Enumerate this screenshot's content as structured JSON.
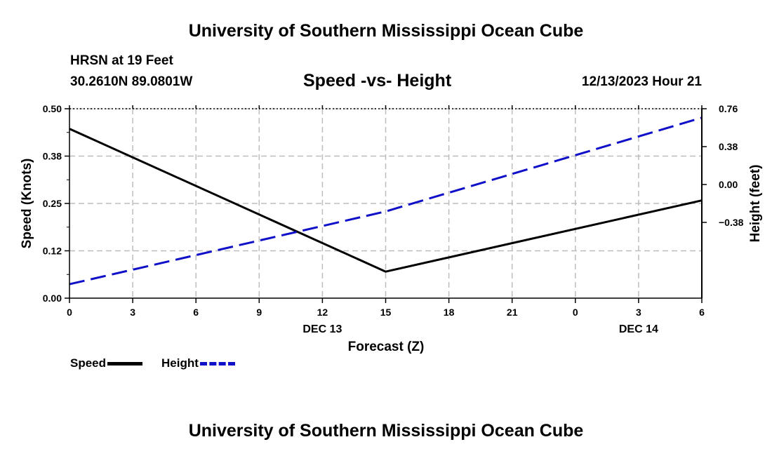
{
  "page": {
    "top_title": "University of Southern Mississippi Ocean Cube",
    "bottom_title": "University of Southern Mississippi Ocean Cube",
    "station": "HRSN at 19 Feet",
    "coords": "30.2610N  89.0801W",
    "datetime": "12/13/2023 Hour 21"
  },
  "colors": {
    "speed": "#000000",
    "height": "#1010c8",
    "grid": "#bdbdbd"
  },
  "chart_data": {
    "type": "line",
    "title": "Speed -vs- Height",
    "xlabel": "Forecast (Z)",
    "ylabel": "Speed (Knots)",
    "y2label": "Height (feet)",
    "x": [
      0,
      15,
      30
    ],
    "x_tick_labels": [
      "0",
      "3",
      "6",
      "9",
      "12",
      "15",
      "18",
      "21",
      "0",
      "3",
      "6"
    ],
    "date_labels": [
      {
        "label": "DEC 13",
        "x": 12
      },
      {
        "label": "DEC 14",
        "x": 27
      }
    ],
    "ylim": [
      0,
      0.5
    ],
    "y_tick_values": [
      0,
      0.125,
      0.25,
      0.375,
      0.5
    ],
    "y_tick_labels": [
      "0.00",
      "0.12",
      "0.25",
      "0.38",
      "0.50"
    ],
    "y2lim": [
      -1.14,
      0.76
    ],
    "y2_tick_values": [
      -0.38,
      0,
      0.38,
      0.76
    ],
    "y2_tick_labels": [
      "−0.38",
      "0.00",
      "0.38",
      "0.76"
    ],
    "series": [
      {
        "name": "Speed",
        "axis": "left",
        "style": "solid",
        "x": [
          0,
          15,
          30
        ],
        "values": [
          0.447,
          0.07,
          0.258
        ]
      },
      {
        "name": "Height",
        "axis": "right",
        "style": "dashed",
        "x": [
          0,
          15,
          30
        ],
        "values": [
          -1.0,
          -0.27,
          0.67
        ]
      }
    ],
    "legend": [
      {
        "label": "Speed",
        "series": 0
      },
      {
        "label": "Height",
        "series": 1
      }
    ]
  }
}
